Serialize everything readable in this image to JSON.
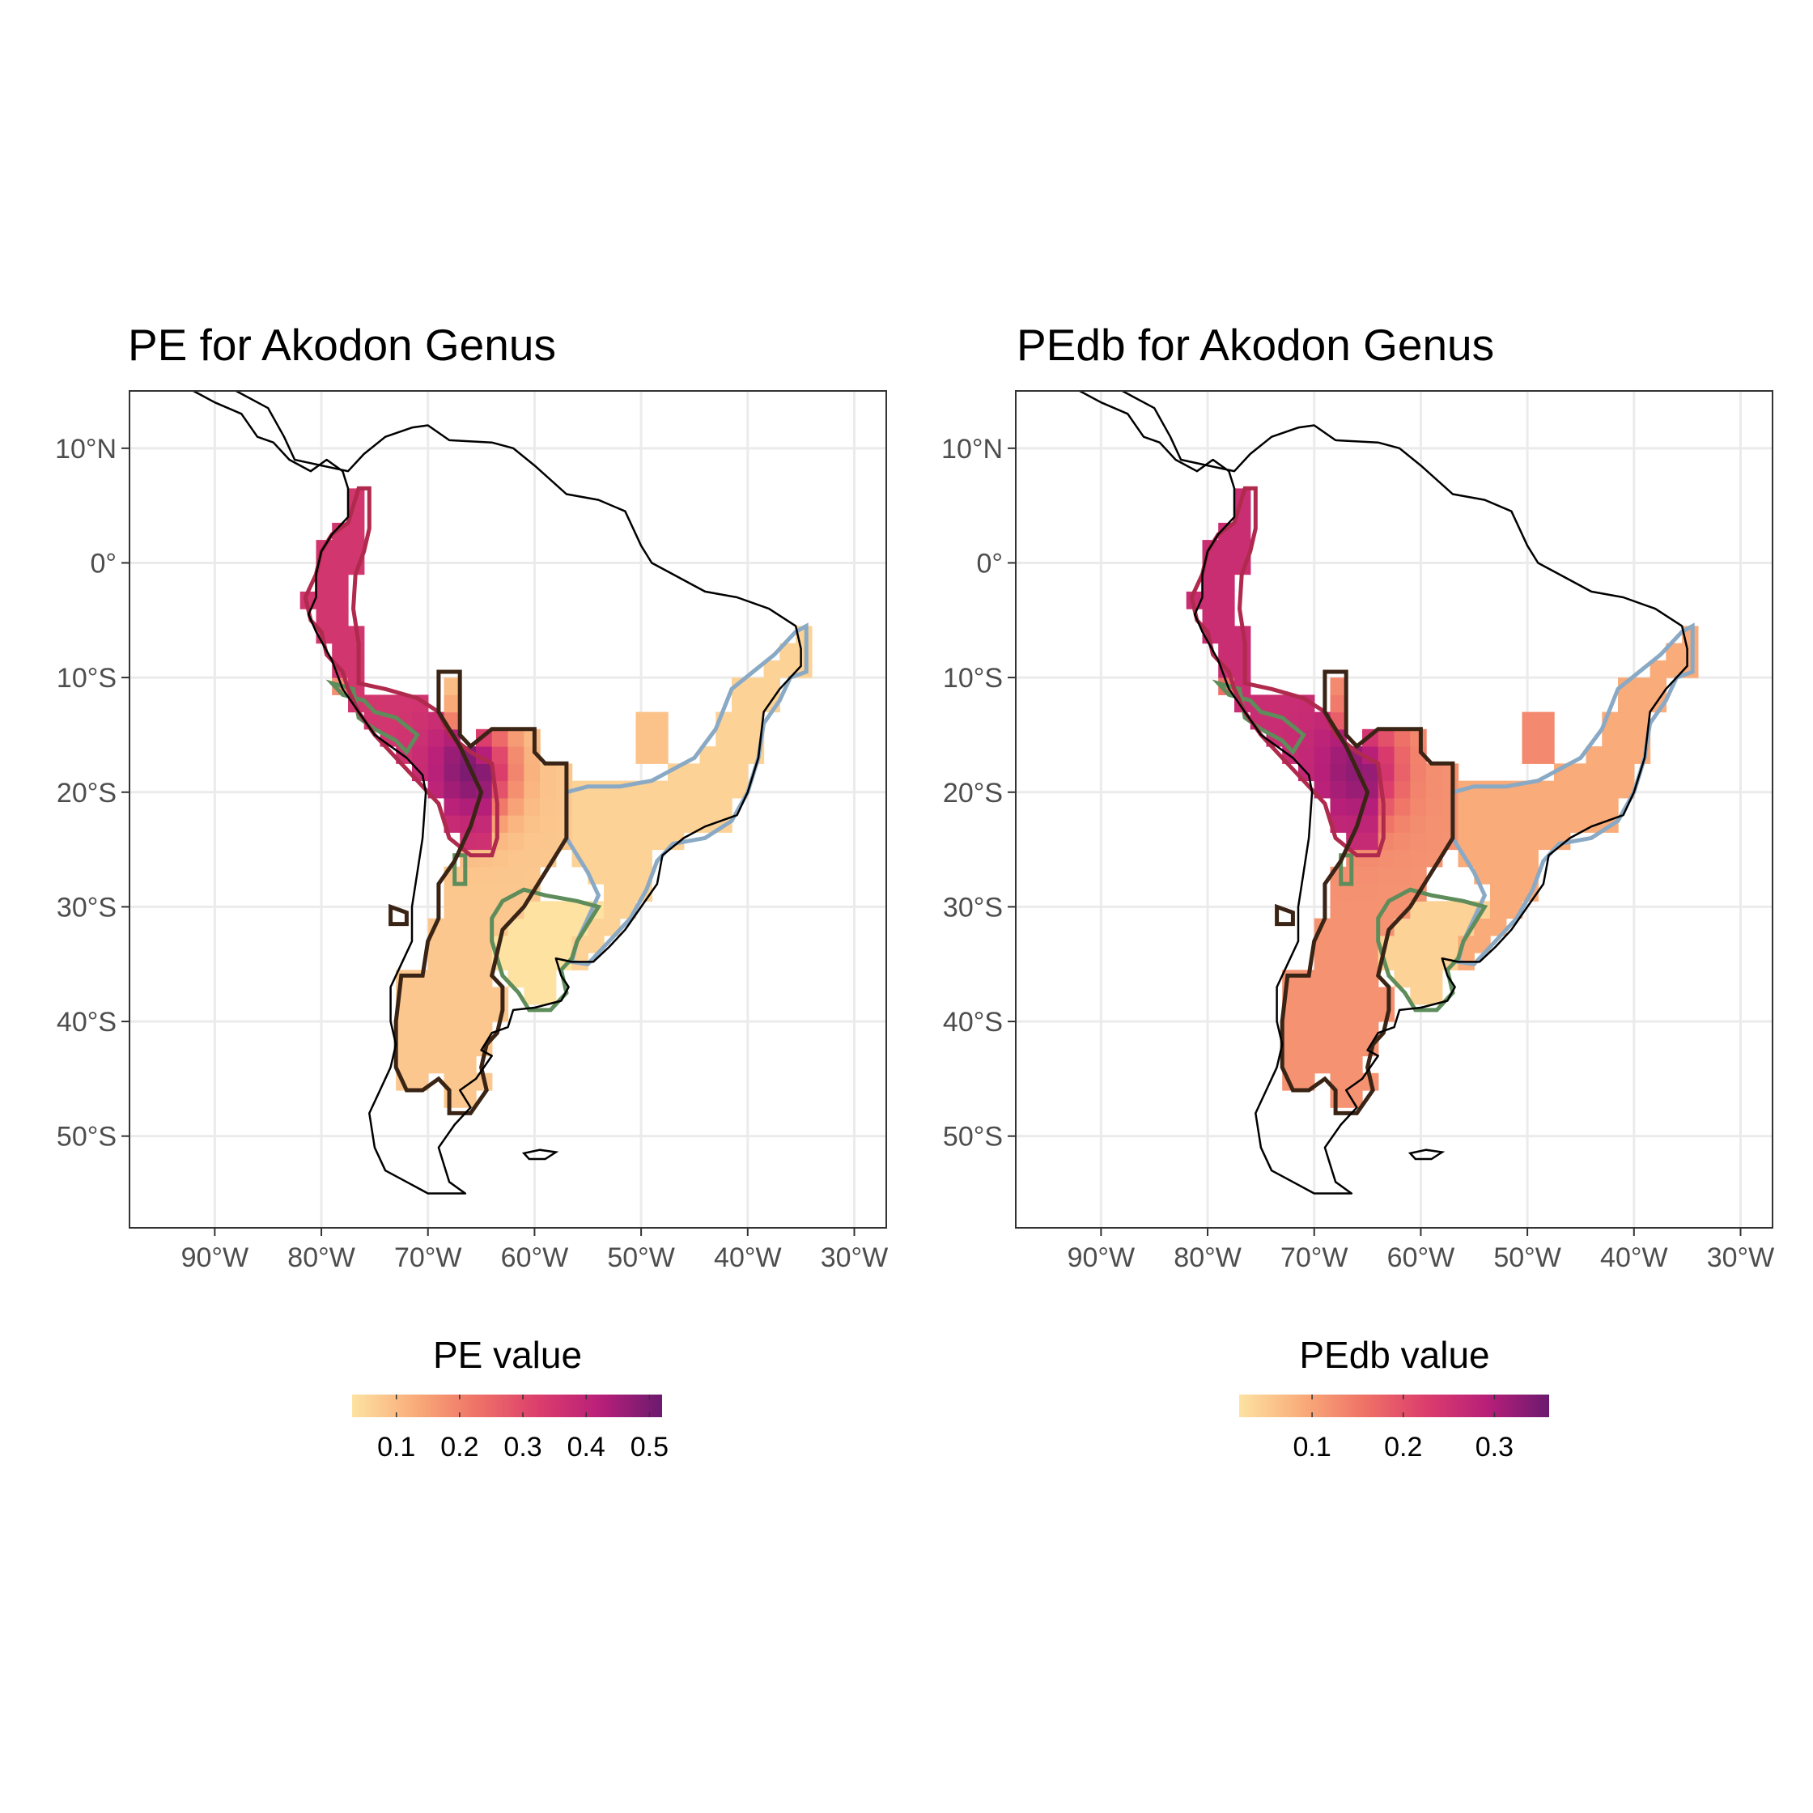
{
  "colors": {
    "ramp": [
      "#fde2a2",
      "#f9ad7a",
      "#ef7367",
      "#dc3e6c",
      "#b81f79",
      "#6b1a6f"
    ],
    "outline_crimson": "#b02a4d",
    "outline_dark": "#3a2415",
    "outline_green": "#5e8c5a",
    "outline_blue": "#8aa9c4",
    "coast": "#000000",
    "grid": "#ebebeb"
  },
  "map": {
    "type": "choropleth-raster",
    "lon_range": [
      -98,
      -27
    ],
    "lat_range": [
      -58,
      15
    ],
    "x_ticks": [
      -90,
      -80,
      -70,
      -60,
      -50,
      -40,
      -30
    ],
    "y_ticks": [
      10,
      0,
      -10,
      -20,
      -30,
      -40,
      -50
    ],
    "x_tick_labels": [
      "90°W",
      "80°W",
      "70°W",
      "60°W",
      "50°W",
      "40°W",
      "30°W"
    ],
    "y_tick_labels": [
      "10°N",
      "0°",
      "10°S",
      "20°S",
      "30°S",
      "40°S",
      "50°S"
    ]
  },
  "panels": [
    {
      "title": "PE for Akodon Genus",
      "legend_title": "PE value",
      "legend_range": [
        0.03,
        0.52
      ],
      "legend_ticks": [
        0.1,
        0.2,
        0.3,
        0.4,
        0.5
      ],
      "legend_tick_labels": [
        "0.1",
        "0.2",
        "0.3",
        "0.4",
        "0.5"
      ],
      "peak_value": 0.5
    },
    {
      "title": "PEdb for Akodon Genus",
      "legend_title": "PEdb value",
      "legend_range": [
        0.02,
        0.36
      ],
      "legend_ticks": [
        0.1,
        0.2,
        0.3
      ],
      "legend_tick_labels": [
        "0.1",
        "0.2",
        "0.3"
      ],
      "peak_value": 0.33
    }
  ]
}
